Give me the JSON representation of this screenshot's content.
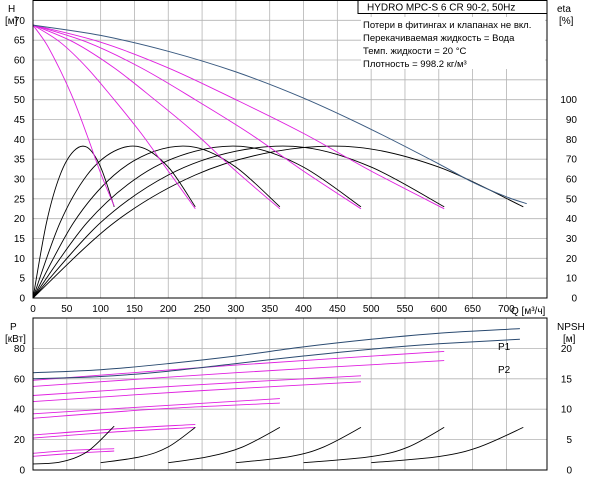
{
  "chart_data": [
    {
      "type": "line",
      "panel": "performance",
      "title": "HYDRO MPC-S 6 CR 90-2, 50Hz",
      "xlabel": "Q [м³/ч]",
      "ylabel_left": [
        "H",
        "[м]"
      ],
      "ylabel_right": [
        "eta",
        "[%]"
      ],
      "xlim": [
        0,
        760
      ],
      "ylim_left": [
        0,
        75
      ],
      "ylim_right": [
        0,
        150
      ],
      "x_ticks": [
        0,
        50,
        100,
        150,
        200,
        250,
        300,
        350,
        400,
        450,
        500,
        550,
        600,
        650,
        700
      ],
      "y_ticks_left": [
        0,
        5,
        10,
        15,
        20,
        25,
        30,
        35,
        40,
        45,
        50,
        55,
        60,
        65,
        70
      ],
      "y_ticks_right": [
        0,
        10,
        20,
        30,
        40,
        50,
        60,
        70,
        80,
        90,
        100
      ],
      "grid": true,
      "notes": [
        "Потери в фитингах и клапанах не вкл.",
        "Перекачиваемая жидкость = Вода",
        "Темп. жидкости = 20 °C",
        "Плотность = 998.2 кг/м³"
      ],
      "colors": {
        "max_curve": "#3a5a80",
        "head_curves": "#e020e0",
        "eta_curves": "#000000"
      },
      "head_max": {
        "name": "",
        "x": [
          0,
          100,
          200,
          300,
          400,
          500,
          600,
          650,
          700,
          730
        ],
        "y": [
          68.8,
          66.2,
          62.2,
          57,
          50.4,
          42.5,
          33.8,
          29.2,
          25.5,
          23.8
        ]
      },
      "head_curves": [
        {
          "pumps": 1,
          "x": [
            0,
            20,
            40,
            60,
            80,
            100,
            120
          ],
          "y": [
            68.8,
            64,
            57.5,
            50,
            41,
            31.5,
            23.2
          ]
        },
        {
          "pumps": 2,
          "x": [
            0,
            40,
            80,
            120,
            160,
            200,
            240
          ],
          "y": [
            68.8,
            64.5,
            58,
            50,
            41.5,
            32,
            22.5
          ]
        },
        {
          "pumps": 3,
          "x": [
            0,
            60,
            120,
            180,
            240,
            300,
            365
          ],
          "y": [
            68.8,
            64.5,
            58,
            50,
            41.5,
            32,
            22.5
          ]
        },
        {
          "pumps": 4,
          "x": [
            0,
            80,
            160,
            240,
            320,
            400,
            485
          ],
          "y": [
            68.8,
            64.5,
            58,
            50,
            41.5,
            32,
            22.5
          ]
        },
        {
          "pumps": 5,
          "x": [
            0,
            100,
            200,
            300,
            400,
            500,
            608
          ],
          "y": [
            68.8,
            64.5,
            58,
            50,
            41.5,
            32,
            22.5
          ]
        }
      ],
      "eta_curves": [
        {
          "x": [
            0,
            20,
            40,
            60,
            80,
            100,
            120
          ],
          "y": [
            0,
            38,
            62,
            74,
            76,
            66,
            46
          ]
        },
        {
          "x": [
            0,
            40,
            80,
            120,
            160,
            200,
            240
          ],
          "y": [
            0,
            38,
            62,
            74,
            76,
            66,
            46
          ]
        },
        {
          "x": [
            0,
            60,
            120,
            180,
            240,
            300,
            365
          ],
          "y": [
            0,
            38,
            62,
            74,
            76,
            66,
            46
          ]
        },
        {
          "x": [
            0,
            80,
            160,
            240,
            320,
            400,
            485
          ],
          "y": [
            0,
            38,
            62,
            74,
            76,
            66,
            46
          ]
        },
        {
          "x": [
            0,
            100,
            200,
            300,
            400,
            500,
            608
          ],
          "y": [
            0,
            38,
            62,
            74,
            76,
            66,
            46
          ]
        },
        {
          "x": [
            0,
            120,
            240,
            360,
            480,
            600,
            725
          ],
          "y": [
            0,
            38,
            62,
            74,
            76,
            66,
            46
          ]
        }
      ]
    },
    {
      "type": "line",
      "panel": "power_npsh",
      "xlim": [
        0,
        760
      ],
      "ylabel_left": [
        "P",
        "[кВт]"
      ],
      "ylabel_right": [
        "NPSH",
        "[м]"
      ],
      "ylim_left": [
        0,
        100
      ],
      "ylim_right": [
        0,
        25
      ],
      "y_ticks_left": [
        0,
        20,
        40,
        60,
        80
      ],
      "y_ticks_right": [
        0,
        5,
        10,
        15,
        20
      ],
      "grid": true,
      "colors": {
        "p_curves": "#2a4a70",
        "p_stage_curves": "#e020e0",
        "npsh_curves": "#000000"
      },
      "p_curves": [
        {
          "name": "P1",
          "x": [
            0,
            100,
            200,
            300,
            400,
            500,
            600,
            720
          ],
          "y": [
            64,
            66,
            70,
            75,
            81,
            86,
            90,
            93
          ]
        },
        {
          "name": "P2",
          "x": [
            0,
            100,
            200,
            300,
            400,
            500,
            600,
            720
          ],
          "y": [
            60,
            61.5,
            65,
            70,
            75,
            79.5,
            83,
            86
          ]
        }
      ],
      "p_stage_curves": [
        {
          "x": [
            0,
            60,
            120
          ],
          "y": [
            9,
            11,
            12.5
          ]
        },
        {
          "x": [
            0,
            60,
            120
          ],
          "y": [
            11,
            13,
            14
          ]
        },
        {
          "x": [
            0,
            120,
            240
          ],
          "y": [
            21,
            25,
            28
          ]
        },
        {
          "x": [
            0,
            120,
            240
          ],
          "y": [
            23,
            27,
            30
          ]
        },
        {
          "x": [
            0,
            180,
            365
          ],
          "y": [
            34,
            40,
            44
          ]
        },
        {
          "x": [
            0,
            180,
            365
          ],
          "y": [
            37,
            42,
            47
          ]
        },
        {
          "x": [
            0,
            240,
            485
          ],
          "y": [
            45,
            52,
            58
          ]
        },
        {
          "x": [
            0,
            240,
            485
          ],
          "y": [
            49,
            56,
            62
          ]
        },
        {
          "x": [
            0,
            300,
            608
          ],
          "y": [
            55,
            64,
            72
          ]
        },
        {
          "x": [
            0,
            300,
            608
          ],
          "y": [
            59,
            69,
            78
          ]
        }
      ],
      "npsh_curves": [
        {
          "x": [
            0,
            40,
            80,
            120
          ],
          "y": [
            1,
            1.3,
            3,
            7.2
          ]
        },
        {
          "x": [
            100,
            160,
            200,
            240
          ],
          "y": [
            1.2,
            2.2,
            3.8,
            7
          ]
        },
        {
          "x": [
            200,
            260,
            310,
            365
          ],
          "y": [
            1.2,
            2.2,
            3.8,
            7
          ]
        },
        {
          "x": [
            300,
            380,
            430,
            485
          ],
          "y": [
            1.2,
            2.2,
            3.8,
            7
          ]
        },
        {
          "x": [
            400,
            500,
            555,
            608
          ],
          "y": [
            1.2,
            2.2,
            3.8,
            7
          ]
        },
        {
          "x": [
            500,
            600,
            660,
            725
          ],
          "y": [
            1.2,
            2.2,
            3.8,
            7
          ]
        }
      ]
    }
  ]
}
